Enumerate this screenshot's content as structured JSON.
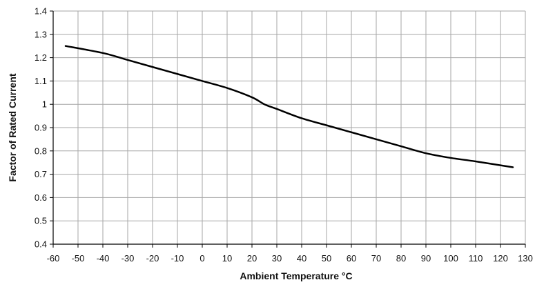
{
  "chart_data": {
    "type": "line",
    "title": "",
    "xlabel": "Ambient Temperature °C",
    "ylabel": "Factor of Rated Current",
    "xlim": [
      -60,
      130
    ],
    "ylim": [
      0.4,
      1.4
    ],
    "x_ticks": [
      -60,
      -50,
      -40,
      -30,
      -20,
      -10,
      0,
      10,
      20,
      30,
      40,
      50,
      60,
      70,
      80,
      90,
      100,
      110,
      120,
      130
    ],
    "y_ticks": [
      0.4,
      0.5,
      0.6,
      0.7,
      0.8,
      0.9,
      1,
      1.1,
      1.2,
      1.3,
      1.4
    ],
    "y_tick_labels": [
      "0.4",
      "0.5",
      "0.6",
      "0.7",
      "0.8",
      "0.9",
      "1",
      "1.1",
      "1.2",
      "1.3",
      "1.4"
    ],
    "grid": true,
    "series": [
      {
        "x": [
          -55,
          -40,
          -30,
          -20,
          -10,
          0,
          10,
          20,
          25,
          30,
          40,
          50,
          60,
          70,
          80,
          90,
          100,
          110,
          125
        ],
        "y": [
          1.25,
          1.22,
          1.19,
          1.16,
          1.13,
          1.1,
          1.07,
          1.03,
          1.0,
          0.98,
          0.94,
          0.91,
          0.88,
          0.85,
          0.82,
          0.79,
          0.77,
          0.755,
          0.73
        ]
      }
    ],
    "colors": {
      "line": "#000000",
      "grid": "#a6a6a6",
      "axis": "#000000"
    }
  }
}
